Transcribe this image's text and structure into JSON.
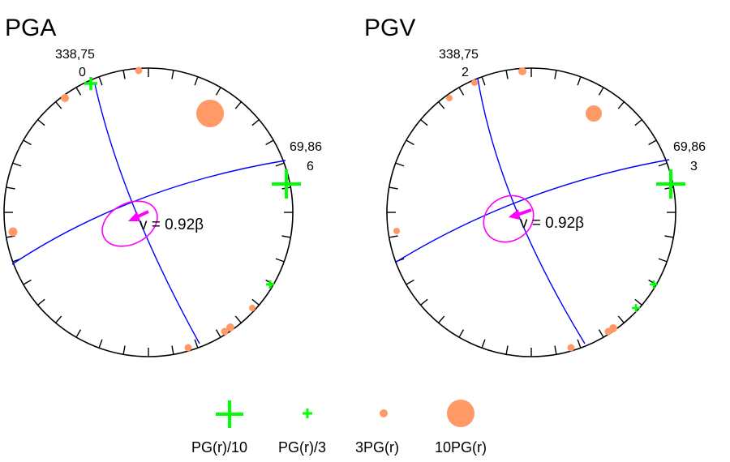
{
  "panels": [
    {
      "title": "PGA",
      "strike_label": "338,75",
      "strike_value": "0",
      "strike_dip_2_label": "69,86",
      "strike_dip_2_value": "6",
      "velocity_label": "v = 0.92β"
    },
    {
      "title": "PGV",
      "strike_label": "338,75",
      "strike_value": "2",
      "strike_dip_2_label": "69,86",
      "strike_dip_2_value": "3",
      "velocity_label": "v = 0.92β"
    }
  ],
  "legend": [
    {
      "label": "PG(r)/10",
      "symbol": "large-green-cross",
      "color": "#00ff00"
    },
    {
      "label": "PG(r)/3",
      "symbol": "small-green-cross",
      "color": "#00ff00"
    },
    {
      "label": "3PG(r)",
      "symbol": "small-orange-dot",
      "color": "#ff9966"
    },
    {
      "label": "10PG(r)",
      "symbol": "large-orange-dot",
      "color": "#ff9966"
    }
  ],
  "colors": {
    "nodal_planes": "#0000ff",
    "ellipse": "#ff00ff",
    "arrow": "#ff00ff",
    "green_symbols": "#00ff00",
    "orange_symbols": "#ff9966"
  }
}
